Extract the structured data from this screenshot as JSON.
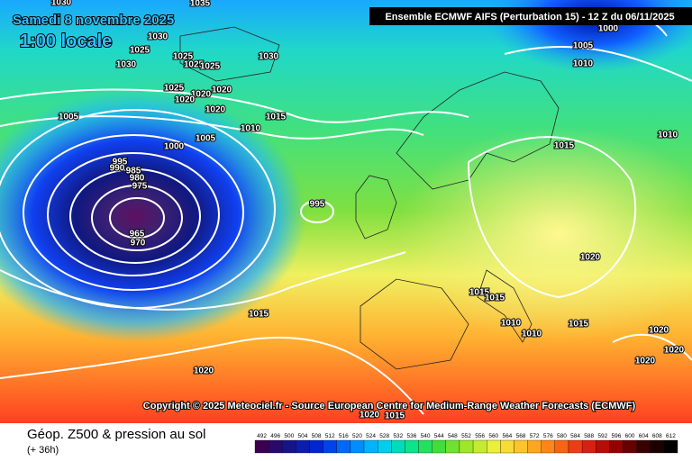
{
  "header": {
    "date": "Samedi 8 novembre 2025",
    "time": "1:00 locale",
    "model": "Ensemble ECMWF AIFS  (Perturbation 15)  -  12 Z du 06/11/2025"
  },
  "map": {
    "isobar_labels": [
      1030,
      1035,
      1030,
      1025,
      1030,
      1025,
      1025,
      1025,
      1030,
      1025,
      1020,
      1020,
      1020,
      1020,
      1005,
      1015,
      1010,
      1005,
      1000,
      995,
      990,
      985,
      980,
      975,
      965,
      970,
      995,
      1015,
      1020,
      1000,
      1005,
      1010,
      1015,
      1010,
      1020,
      1015,
      1015,
      1010,
      1015,
      1010,
      1020,
      1020,
      1020,
      1020,
      1015
    ],
    "copyright": "Copyright © 2025 Meteociel.fr - Source European Centre for Medium-Range Weather Forecasts (ECMWF)"
  },
  "footer": {
    "title": "Géop. Z500 & pression au sol",
    "lead": "(+ 36h)"
  },
  "legend": {
    "values": [
      492,
      496,
      500,
      504,
      508,
      512,
      516,
      520,
      524,
      528,
      532,
      536,
      540,
      544,
      548,
      552,
      556,
      560,
      564,
      568,
      572,
      576,
      580,
      584,
      588,
      592,
      596,
      600,
      604,
      608,
      612
    ]
  }
}
